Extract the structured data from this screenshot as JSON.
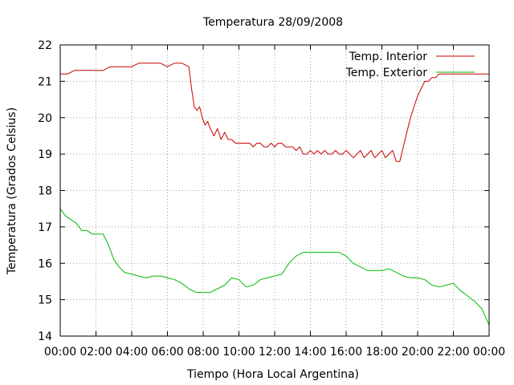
{
  "chart_data": {
    "type": "line",
    "title": "Temperatura 28/09/2008",
    "xlabel": "Tiempo (Hora Local Argentina)",
    "ylabel": "Temperatura (Grados Celsius)",
    "xlim": [
      0,
      24
    ],
    "ylim": [
      14,
      22
    ],
    "x_ticks": [
      0,
      2,
      4,
      6,
      8,
      10,
      12,
      14,
      16,
      18,
      20,
      22,
      24
    ],
    "x_tick_labels": [
      "00:00",
      "02:00",
      "04:00",
      "06:00",
      "08:00",
      "10:00",
      "12:00",
      "14:00",
      "16:00",
      "18:00",
      "20:00",
      "22:00",
      "00:00"
    ],
    "y_ticks": [
      14,
      15,
      16,
      17,
      18,
      19,
      20,
      21,
      22
    ],
    "y_tick_labels": [
      "14",
      "15",
      "16",
      "17",
      "18",
      "19",
      "20",
      "21",
      "22"
    ],
    "grid": true,
    "legend_position": "top-right",
    "series": [
      {
        "name": "Temp. Interior",
        "color": "#cc0000",
        "x": [
          0,
          0.4,
          0.8,
          1.2,
          1.6,
          2.0,
          2.4,
          2.8,
          3.2,
          3.6,
          4.0,
          4.4,
          4.8,
          5.2,
          5.6,
          6.0,
          6.4,
          6.8,
          7.2,
          7.35,
          7.5,
          7.65,
          7.8,
          7.95,
          8.1,
          8.25,
          8.4,
          8.6,
          8.8,
          9.0,
          9.2,
          9.4,
          9.6,
          9.8,
          10.0,
          10.2,
          10.4,
          10.6,
          10.8,
          11.0,
          11.2,
          11.4,
          11.6,
          11.8,
          12.0,
          12.2,
          12.4,
          12.6,
          12.8,
          13.0,
          13.2,
          13.4,
          13.6,
          13.8,
          14.0,
          14.2,
          14.4,
          14.6,
          14.8,
          15.0,
          15.2,
          15.4,
          15.6,
          15.8,
          16.0,
          16.2,
          16.4,
          16.6,
          16.8,
          17.0,
          17.2,
          17.4,
          17.6,
          17.8,
          18.0,
          18.2,
          18.4,
          18.6,
          18.8,
          19.0,
          19.2,
          19.4,
          19.6,
          19.8,
          20.0,
          20.2,
          20.4,
          20.6,
          20.8,
          21.0,
          21.2,
          21.4,
          21.6,
          21.8,
          22.0,
          22.5,
          23.0,
          23.5,
          24.0
        ],
        "values": [
          21.2,
          21.2,
          21.3,
          21.3,
          21.3,
          21.3,
          21.3,
          21.4,
          21.4,
          21.4,
          21.4,
          21.5,
          21.5,
          21.5,
          21.5,
          21.4,
          21.5,
          21.5,
          21.4,
          20.8,
          20.3,
          20.2,
          20.3,
          20.0,
          19.8,
          19.9,
          19.7,
          19.5,
          19.7,
          19.4,
          19.6,
          19.4,
          19.4,
          19.3,
          19.3,
          19.3,
          19.3,
          19.3,
          19.2,
          19.3,
          19.3,
          19.2,
          19.2,
          19.3,
          19.2,
          19.3,
          19.3,
          19.2,
          19.2,
          19.2,
          19.1,
          19.2,
          19.0,
          19.0,
          19.1,
          19.0,
          19.1,
          19.0,
          19.1,
          19.0,
          19.0,
          19.1,
          19.0,
          19.0,
          19.1,
          19.0,
          18.9,
          19.0,
          19.1,
          18.9,
          19.0,
          19.1,
          18.9,
          19.0,
          19.1,
          18.9,
          19.0,
          19.1,
          18.8,
          18.8,
          19.2,
          19.6,
          20.0,
          20.3,
          20.6,
          20.8,
          21.0,
          21.0,
          21.1,
          21.1,
          21.2,
          21.2,
          21.2,
          21.2,
          21.2,
          21.2,
          21.2,
          21.2,
          21.2
        ]
      },
      {
        "name": "Temp. Exterior",
        "color": "#00bb00",
        "x": [
          0,
          0.3,
          0.6,
          0.9,
          1.2,
          1.5,
          1.8,
          2.1,
          2.4,
          2.7,
          3.0,
          3.3,
          3.6,
          4.0,
          4.4,
          4.8,
          5.2,
          5.6,
          6.0,
          6.4,
          6.8,
          7.2,
          7.6,
          8.0,
          8.4,
          8.8,
          9.2,
          9.6,
          10.0,
          10.4,
          10.8,
          11.2,
          11.6,
          12.0,
          12.4,
          12.8,
          13.2,
          13.6,
          14.0,
          14.4,
          14.8,
          15.2,
          15.6,
          16.0,
          16.4,
          16.8,
          17.2,
          17.6,
          18.0,
          18.4,
          18.8,
          19.2,
          19.6,
          20.0,
          20.4,
          20.8,
          21.2,
          21.6,
          22.0,
          22.4,
          22.8,
          23.2,
          23.6,
          24.0
        ],
        "values": [
          17.5,
          17.3,
          17.2,
          17.1,
          16.9,
          16.9,
          16.8,
          16.8,
          16.8,
          16.5,
          16.1,
          15.9,
          15.75,
          15.7,
          15.65,
          15.6,
          15.65,
          15.65,
          15.6,
          15.55,
          15.45,
          15.3,
          15.2,
          15.2,
          15.2,
          15.3,
          15.4,
          15.6,
          15.55,
          15.35,
          15.4,
          15.55,
          15.6,
          15.65,
          15.7,
          16.0,
          16.2,
          16.3,
          16.3,
          16.3,
          16.3,
          16.3,
          16.3,
          16.2,
          16.0,
          15.9,
          15.8,
          15.8,
          15.8,
          15.85,
          15.75,
          15.65,
          15.6,
          15.6,
          15.55,
          15.4,
          15.35,
          15.4,
          15.45,
          15.25,
          15.1,
          14.95,
          14.75,
          14.3
        ]
      }
    ]
  }
}
